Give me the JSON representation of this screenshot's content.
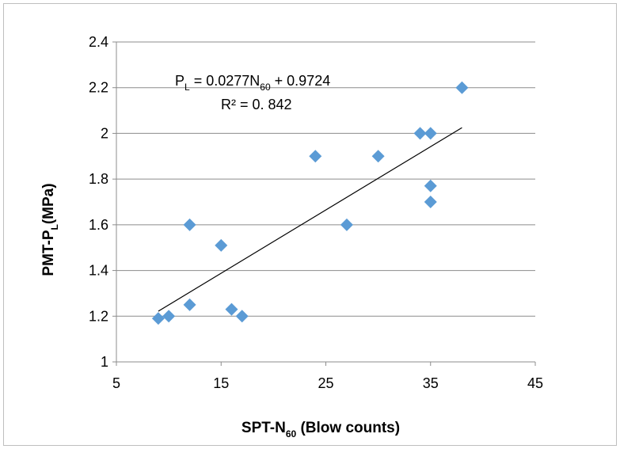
{
  "chart_data": {
    "type": "scatter",
    "x": [
      9,
      10,
      12,
      12,
      15,
      16,
      17,
      24,
      27,
      30,
      34,
      35,
      35,
      35,
      38
    ],
    "y": [
      1.19,
      1.2,
      1.6,
      1.25,
      1.51,
      1.23,
      1.2,
      1.9,
      1.6,
      1.9,
      2.0,
      2.0,
      1.77,
      1.7,
      2.2
    ],
    "xlim": [
      5,
      45
    ],
    "ylim": [
      1,
      2.4
    ],
    "xticks": [
      "5",
      "15",
      "25",
      "35",
      "45"
    ],
    "yticks": [
      "1",
      "1.2",
      "1.4",
      "1.6",
      "1.8",
      "2",
      "2.2",
      "2.4"
    ],
    "xlabel": {
      "main": "SPT-N",
      "sub": "60",
      "rest": " (Blow counts)"
    },
    "ylabel": {
      "main": "PMT-P",
      "sub": "L",
      "rest": "(MPa)"
    },
    "gridlines": "horizontal",
    "marker": {
      "shape": "diamond",
      "color": "#5b9bd5"
    },
    "trendline": {
      "slope": 0.0277,
      "intercept": 0.9724,
      "x_range": [
        9,
        38
      ],
      "color": "#000000",
      "equation": {
        "p": "P",
        "p_sub": "L",
        "mid": " = 0.0277N",
        "n_sub": "60",
        "rest": " + 0.9724"
      },
      "r_squared": "R² = 0. 842"
    }
  }
}
